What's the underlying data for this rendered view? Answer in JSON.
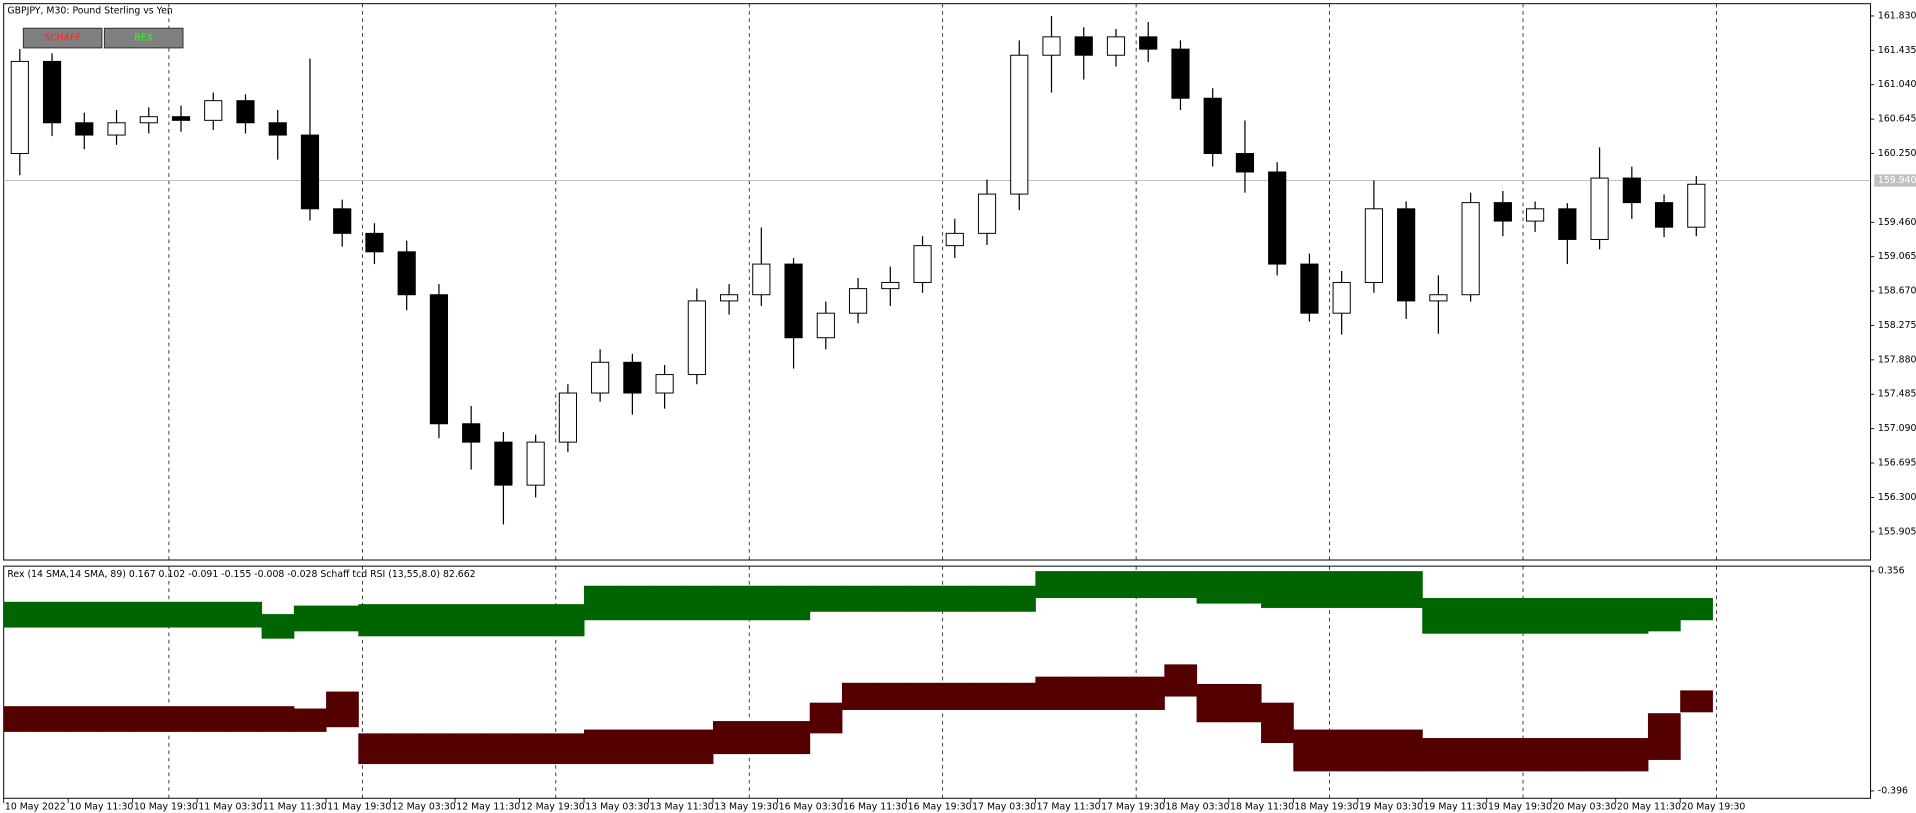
{
  "chart_data": [
    {
      "type": "candlestick",
      "title": "GBPJPY, M30:  Pound Sterling vs Yen",
      "buttons": [
        {
          "label": "SCHAFF",
          "color": "#ff2020"
        },
        {
          "label": "REX",
          "color": "#20ff20"
        }
      ],
      "open": [
        160.25,
        161.308,
        160.603,
        160.462,
        160.603,
        160.673,
        160.631,
        160.857,
        160.603,
        160.462,
        159.615,
        159.333,
        159.121,
        158.628,
        157.146,
        156.935,
        156.441,
        156.935,
        157.499,
        157.852,
        157.499,
        157.711,
        158.557,
        158.628,
        158.98,
        158.134,
        158.416,
        158.698,
        158.769,
        159.192,
        159.333,
        159.784,
        161.379,
        161.59,
        161.379,
        161.59,
        161.449,
        160.885,
        160.25,
        160.038,
        158.98,
        158.416,
        158.769,
        159.615,
        158.557,
        158.628,
        159.686,
        159.474,
        159.615,
        159.263,
        159.968,
        159.686,
        159.404
      ],
      "high": [
        161.45,
        161.4,
        160.72,
        160.75,
        160.78,
        160.8,
        160.95,
        160.93,
        160.75,
        161.34,
        159.72,
        159.45,
        159.25,
        158.75,
        157.35,
        157.05,
        157.02,
        157.6,
        158.0,
        157.95,
        157.82,
        158.7,
        158.75,
        159.4,
        159.05,
        158.55,
        158.82,
        158.95,
        159.3,
        159.5,
        159.95,
        161.55,
        161.83,
        161.7,
        161.68,
        161.76,
        161.55,
        161.0,
        160.63,
        160.15,
        159.1,
        158.9,
        159.94,
        159.7,
        158.85,
        159.8,
        159.82,
        159.7,
        159.68,
        160.32,
        160.1,
        159.78,
        159.99
      ],
      "low": [
        160.0,
        160.45,
        160.3,
        160.35,
        160.48,
        160.5,
        160.52,
        160.48,
        160.18,
        159.48,
        159.18,
        158.98,
        158.45,
        156.98,
        156.62,
        155.99,
        156.3,
        156.82,
        157.4,
        157.25,
        157.32,
        157.6,
        158.4,
        158.5,
        157.78,
        158.0,
        158.3,
        158.5,
        158.65,
        159.05,
        159.2,
        159.6,
        160.95,
        161.1,
        161.25,
        161.3,
        160.75,
        160.1,
        159.8,
        158.85,
        158.32,
        158.17,
        158.65,
        158.35,
        158.18,
        158.55,
        159.3,
        159.35,
        158.98,
        159.15,
        159.5,
        159.29,
        159.3
      ],
      "close": [
        161.308,
        160.603,
        160.462,
        160.603,
        160.673,
        160.631,
        160.857,
        160.603,
        160.462,
        159.615,
        159.333,
        159.121,
        158.628,
        157.146,
        156.935,
        156.441,
        156.935,
        157.499,
        157.852,
        157.499,
        157.711,
        158.557,
        158.628,
        158.98,
        158.134,
        158.416,
        158.698,
        158.769,
        159.192,
        159.333,
        159.784,
        161.379,
        161.59,
        161.379,
        161.59,
        161.449,
        160.885,
        160.25,
        160.038,
        158.98,
        158.416,
        158.769,
        159.615,
        158.557,
        158.628,
        159.686,
        159.474,
        159.615,
        159.263,
        159.968,
        159.686,
        159.404,
        159.897
      ],
      "up_color": "#ffffff",
      "down_color": "#000000",
      "current_price": {
        "value": 159.94,
        "label": "159.940"
      },
      "ylim": [
        155.581,
        161.971
      ],
      "yticks": [
        {
          "value": 161.83,
          "label": "161.830"
        },
        161.435,
        {
          "value": 161.04,
          "label": "161.040"
        },
        160.645,
        {
          "value": 160.25,
          "label": "160.250"
        },
        {
          "value": 159.46,
          "label": "159.460"
        },
        159.065,
        {
          "value": 158.67,
          "label": "158.670"
        },
        158.275,
        {
          "value": 157.88,
          "label": "157.880"
        },
        157.485,
        {
          "value": 157.09,
          "label": "157.090"
        },
        156.695,
        {
          "value": 156.3,
          "label": "156.300"
        },
        155.905
      ],
      "x_labels": [
        "10 May 2022",
        "10 May 11:30",
        "10 May 19:30",
        "11 May 03:30",
        "11 May 11:30",
        "11 May 19:30",
        "12 May 03:30",
        "12 May 11:30",
        "12 May 19:30",
        "13 May 03:30",
        "13 May 11:30",
        "13 May 19:30",
        "16 May 03:30",
        "16 May 11:30",
        "16 May 19:30",
        "17 May 03:30",
        "17 May 11:30",
        "17 May 19:30",
        "18 May 03:30",
        "18 May 11:30",
        "18 May 19:30",
        "19 May 03:30",
        "19 May 11:30",
        "19 May 19:30",
        "20 May 03:30",
        "20 May 11:30",
        "20 May 19:30"
      ]
    },
    {
      "type": "band",
      "title": "Rex (14 SMA,14 SMA, 89) 0.167 0.102 -0.091 -0.155 -0.008 -0.028 Schaff tcd RSI (13,55,8.0) 82.662",
      "ylim": [
        -0.421,
        0.373
      ],
      "yticks": [
        -0.396,
        0.356
      ],
      "series": [
        {
          "color": "#006400",
          "upper": [
            0.251,
            0.251,
            0.251,
            0.251,
            0.251,
            0.251,
            0.251,
            0.251,
            0.209,
            0.238,
            0.238,
            0.243,
            0.243,
            0.243,
            0.243,
            0.243,
            0.243,
            0.243,
            0.306,
            0.306,
            0.306,
            0.306,
            0.306,
            0.306,
            0.306,
            0.306,
            0.306,
            0.306,
            0.306,
            0.306,
            0.306,
            0.306,
            0.356,
            0.356,
            0.356,
            0.356,
            0.356,
            0.356,
            0.356,
            0.356,
            0.356,
            0.356,
            0.356,
            0.356,
            0.264,
            0.264,
            0.264,
            0.264,
            0.264,
            0.264,
            0.264,
            0.264,
            0.264
          ],
          "lower": [
            0.163,
            0.163,
            0.163,
            0.163,
            0.163,
            0.163,
            0.163,
            0.163,
            0.125,
            0.15,
            0.15,
            0.133,
            0.133,
            0.133,
            0.133,
            0.133,
            0.133,
            0.133,
            0.188,
            0.188,
            0.188,
            0.188,
            0.188,
            0.188,
            0.188,
            0.217,
            0.217,
            0.217,
            0.217,
            0.217,
            0.217,
            0.217,
            0.264,
            0.264,
            0.264,
            0.264,
            0.264,
            0.245,
            0.245,
            0.23,
            0.23,
            0.23,
            0.23,
            0.23,
            0.142,
            0.142,
            0.142,
            0.142,
            0.142,
            0.142,
            0.142,
            0.15,
            0.188
          ]
        },
        {
          "color": "#550000",
          "upper": [
            -0.106,
            -0.106,
            -0.106,
            -0.106,
            -0.106,
            -0.106,
            -0.106,
            -0.106,
            -0.106,
            -0.114,
            -0.056,
            -0.199,
            -0.199,
            -0.199,
            -0.199,
            -0.199,
            -0.199,
            -0.199,
            -0.186,
            -0.186,
            -0.186,
            -0.186,
            -0.157,
            -0.157,
            -0.157,
            -0.094,
            -0.026,
            -0.026,
            -0.026,
            -0.026,
            -0.026,
            -0.026,
            -0.005,
            -0.005,
            -0.005,
            -0.005,
            0.037,
            -0.03,
            -0.03,
            -0.094,
            -0.186,
            -0.186,
            -0.186,
            -0.186,
            -0.215,
            -0.215,
            -0.215,
            -0.215,
            -0.215,
            -0.215,
            -0.215,
            -0.13,
            -0.052
          ],
          "lower": [
            -0.194,
            -0.194,
            -0.194,
            -0.194,
            -0.194,
            -0.194,
            -0.194,
            -0.194,
            -0.194,
            -0.194,
            -0.178,
            -0.304,
            -0.304,
            -0.304,
            -0.304,
            -0.304,
            -0.304,
            -0.304,
            -0.304,
            -0.304,
            -0.304,
            -0.304,
            -0.27,
            -0.27,
            -0.27,
            -0.199,
            -0.119,
            -0.119,
            -0.119,
            -0.119,
            -0.119,
            -0.119,
            -0.119,
            -0.119,
            -0.119,
            -0.119,
            -0.073,
            -0.161,
            -0.161,
            -0.232,
            -0.329,
            -0.329,
            -0.329,
            -0.329,
            -0.329,
            -0.329,
            -0.329,
            -0.329,
            -0.329,
            -0.329,
            -0.329,
            -0.29,
            -0.127
          ]
        }
      ]
    }
  ]
}
